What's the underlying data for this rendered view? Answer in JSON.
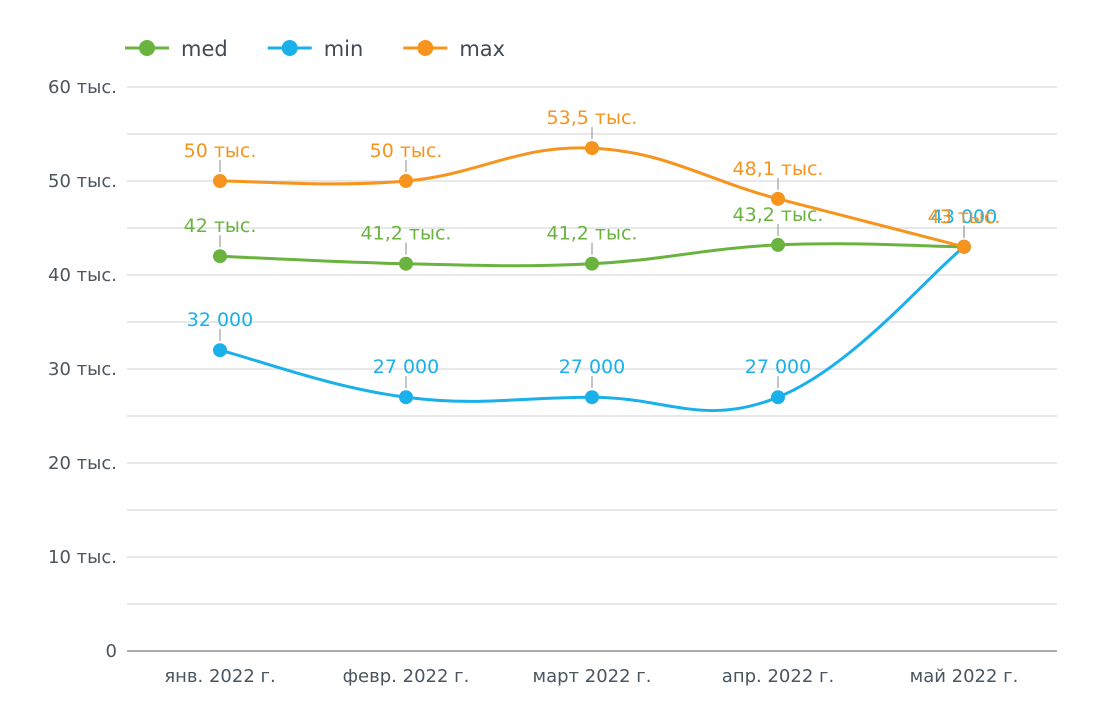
{
  "chart_data": {
    "type": "line",
    "title": "",
    "xlabel": "",
    "ylabel": "",
    "categories": [
      "янв. 2022 г.",
      "февр. 2022 г.",
      "март 2022 г.",
      "апр. 2022 г.",
      "май 2022 г."
    ],
    "ylim": [
      0,
      60000
    ],
    "y_ticks": [
      0,
      10000,
      20000,
      30000,
      40000,
      50000,
      60000
    ],
    "y_tick_labels": [
      "0",
      "10 тыс.",
      "20 тыс.",
      "30 тыс.",
      "40 тыс.",
      "50 тыс.",
      "60 тыс."
    ],
    "grid": true,
    "legend_position": "top-left",
    "series": [
      {
        "name": "med",
        "color": "#6bb33f",
        "values": [
          42000,
          41200,
          41200,
          43200,
          43000
        ],
        "labels": [
          "42 тыс.",
          "41,2 тыс.",
          "41,2 тыс.",
          "43,2 тыс.",
          ""
        ]
      },
      {
        "name": "min",
        "color": "#1ab0ea",
        "values": [
          32000,
          27000,
          27000,
          27000,
          43000
        ],
        "labels": [
          "32 000",
          "27 000",
          "27 000",
          "27 000",
          "43 000"
        ]
      },
      {
        "name": "max",
        "color": "#f7941d",
        "values": [
          50000,
          50000,
          53500,
          48100,
          43000
        ],
        "labels": [
          "50 тыс.",
          "50 тыс.",
          "53,5 тыс.",
          "48,1 тыс.",
          "43 тыс."
        ]
      }
    ]
  }
}
